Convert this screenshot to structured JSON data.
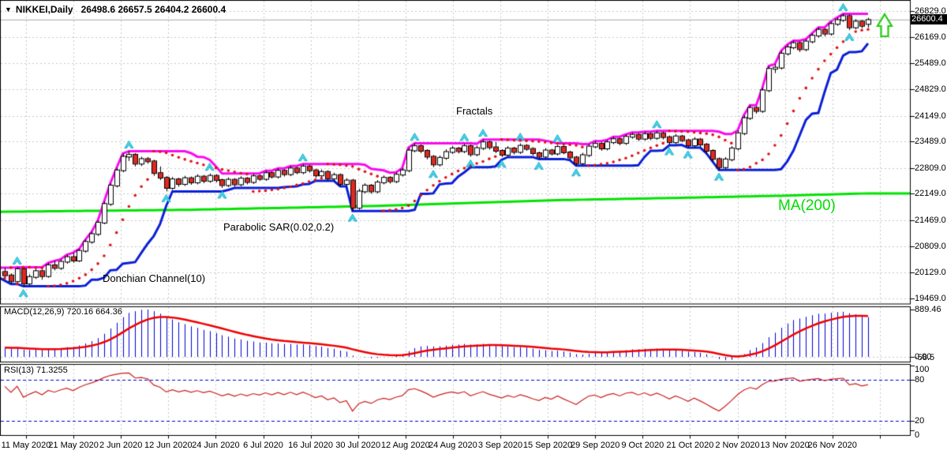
{
  "window": {
    "dropdown_icon": "▼",
    "symbol_title": "NIKKEI,Daily",
    "title_ohlc": "26498.6 26657.5 26404.2 26600.4"
  },
  "main_chart": {
    "labels": {
      "fractals": "Fractals",
      "parabolic_sar": "Parabolic SAR(0.02,0.2)",
      "donchian": "Donchian Channel(10)",
      "ma200": "MA(200)"
    },
    "current_price": "26600.4",
    "price_ticks": [
      26829.0,
      26169.0,
      25489.0,
      24829.0,
      24149.0,
      23489.0,
      22809.0,
      22149.0,
      21469.0,
      20809.0,
      20129.0,
      19469.0
    ],
    "up_arrow_icon": "buy-signal-arrow"
  },
  "macd_panel": {
    "label": "MACD(12,26,9) 720.16 664.36",
    "tick_max": "889.46",
    "tick_zero": "0.00",
    "tick_min": "-58.5"
  },
  "rsi_panel": {
    "label": "RSI(13) 71.3255",
    "ticks": [
      100,
      80,
      20,
      0
    ],
    "level_lines": [
      80,
      20
    ]
  },
  "date_axis": {
    "labels": [
      "11 May 2020",
      "21 May 2020",
      "2 Jun 2020",
      "12 Jun 2020",
      "24 Jun 2020",
      "6 Jul 2020",
      "16 Jul 2020",
      "30 Jul 2020",
      "12 Aug 2020",
      "24 Aug 2020",
      "3 Sep 2020",
      "15 Sep 2020",
      "29 Sep 2020",
      "9 Oct 2020",
      "21 Oct 2020",
      "2 Nov 2020",
      "13 Nov 2020",
      "26 Nov 2020"
    ]
  },
  "colors": {
    "grid": "#c8c8c8",
    "panel_border": "#000000",
    "candle_up_fill": "#ffffff",
    "candle_down_fill": "#e02820",
    "candle_outline": "#000000",
    "donchian_upper": "#fb0af0",
    "donchian_lower": "#0b1fd8",
    "ma200": "#00e400",
    "sar_dots": "#e01414",
    "fractal_fill": "#49d8ea",
    "fractal_edge": "#0fa6c6",
    "macd_hist": "#0000d8",
    "macd_signal": "#f00000",
    "rsi_line": "#cc2020",
    "rsi_levels": "#0000cc",
    "price_line": "#a8a8a8",
    "buy_arrow": "#22cc11"
  },
  "chart_data": {
    "type": "candlestick",
    "symbol": "NIKKEI",
    "timeframe": "Daily",
    "title": "NIKKEI,Daily 26498.6 26657.5 26404.2 26600.4",
    "x_labels": [
      "11 May 2020",
      "21 May 2020",
      "2 Jun 2020",
      "12 Jun 2020",
      "24 Jun 2020",
      "6 Jul 2020",
      "16 Jul 2020",
      "30 Jul 2020",
      "12 Aug 2020",
      "24 Aug 2020",
      "3 Sep 2020",
      "15 Sep 2020",
      "29 Sep 2020",
      "9 Oct 2020",
      "21 Oct 2020",
      "2 Nov 2020",
      "13 Nov 2020",
      "26 Nov 2020"
    ],
    "y_axis_ticks": [
      26829.0,
      26169.0,
      25489.0,
      24829.0,
      24149.0,
      23489.0,
      22809.0,
      22149.0,
      21469.0,
      20809.0,
      20129.0,
      19469.0
    ],
    "last_price": 26600.4,
    "indicators": {
      "parabolic_sar_params": [
        0.02,
        0.2
      ],
      "donchian_period": 10,
      "ma_period": 200,
      "macd_params": [
        12,
        26,
        9
      ],
      "macd_values": [
        720.16,
        664.36
      ],
      "macd_scale_max": 889.46,
      "rsi_period": 13,
      "rsi_value": 71.3255,
      "rsi_levels": [
        80,
        20
      ]
    },
    "ma200_anchors": [
      [
        0,
        21690
      ],
      [
        30,
        21740
      ],
      [
        60,
        21840
      ],
      [
        90,
        21990
      ],
      [
        110,
        22050
      ],
      [
        125,
        22100
      ],
      [
        139,
        22160
      ]
    ],
    "candles": [
      [
        20150,
        20260,
        19990,
        20060
      ],
      [
        20060,
        20110,
        19840,
        19910
      ],
      [
        19910,
        20270,
        19860,
        20220
      ],
      [
        20220,
        20250,
        19780,
        19850
      ],
      [
        19850,
        20090,
        19800,
        20020
      ],
      [
        20020,
        20240,
        19970,
        20170
      ],
      [
        20170,
        20210,
        19950,
        20040
      ],
      [
        20040,
        20380,
        20000,
        20320
      ],
      [
        20320,
        20430,
        20190,
        20250
      ],
      [
        20250,
        20470,
        20200,
        20410
      ],
      [
        20410,
        20590,
        20360,
        20530
      ],
      [
        20530,
        20640,
        20380,
        20440
      ],
      [
        20440,
        20740,
        20400,
        20690
      ],
      [
        20690,
        20980,
        20640,
        20920
      ],
      [
        20920,
        21180,
        20870,
        21120
      ],
      [
        21120,
        21470,
        21070,
        21410
      ],
      [
        21410,
        21950,
        21370,
        21890
      ],
      [
        21890,
        22420,
        21840,
        22360
      ],
      [
        22360,
        22810,
        22310,
        22750
      ],
      [
        22750,
        23180,
        22700,
        23100
      ],
      [
        23100,
        23240,
        22990,
        23150
      ],
      [
        23150,
        23190,
        22850,
        22920
      ],
      [
        22920,
        23100,
        22860,
        23040
      ],
      [
        23040,
        23090,
        22920,
        22980
      ],
      [
        22980,
        23020,
        22610,
        22680
      ],
      [
        22680,
        22850,
        22500,
        22560
      ],
      [
        22560,
        22600,
        22210,
        22300
      ],
      [
        22300,
        22580,
        22250,
        22520
      ],
      [
        22520,
        22560,
        22330,
        22400
      ],
      [
        22400,
        22610,
        22350,
        22550
      ],
      [
        22550,
        22590,
        22380,
        22440
      ],
      [
        22440,
        22650,
        22390,
        22590
      ],
      [
        22590,
        22630,
        22420,
        22480
      ],
      [
        22480,
        22670,
        22430,
        22610
      ],
      [
        22610,
        22650,
        22440,
        22500
      ],
      [
        22500,
        22540,
        22300,
        22370
      ],
      [
        22370,
        22570,
        22320,
        22510
      ],
      [
        22510,
        22550,
        22330,
        22390
      ],
      [
        22390,
        22600,
        22340,
        22540
      ],
      [
        22540,
        22580,
        22390,
        22450
      ],
      [
        22450,
        22660,
        22400,
        22600
      ],
      [
        22600,
        22640,
        22480,
        22530
      ],
      [
        22530,
        22740,
        22480,
        22680
      ],
      [
        22680,
        22720,
        22540,
        22590
      ],
      [
        22590,
        22800,
        22540,
        22740
      ],
      [
        22740,
        22780,
        22590,
        22650
      ],
      [
        22650,
        22860,
        22600,
        22800
      ],
      [
        22800,
        22840,
        22650,
        22700
      ],
      [
        22700,
        22910,
        22650,
        22850
      ],
      [
        22850,
        22890,
        22690,
        22750
      ],
      [
        22750,
        22790,
        22550,
        22620
      ],
      [
        22620,
        22770,
        22560,
        22710
      ],
      [
        22710,
        22750,
        22480,
        22540
      ],
      [
        22540,
        22690,
        22480,
        22630
      ],
      [
        22630,
        22670,
        22340,
        22400
      ],
      [
        22400,
        22550,
        22340,
        22490
      ],
      [
        22490,
        22530,
        21710,
        21790
      ],
      [
        21790,
        22280,
        21740,
        22210
      ],
      [
        22210,
        22420,
        22160,
        22360
      ],
      [
        22360,
        22400,
        22150,
        22210
      ],
      [
        22210,
        22500,
        22160,
        22440
      ],
      [
        22440,
        22620,
        22390,
        22560
      ],
      [
        22560,
        22600,
        22410,
        22470
      ],
      [
        22470,
        22700,
        22420,
        22640
      ],
      [
        22640,
        22810,
        22590,
        22750
      ],
      [
        22750,
        23330,
        22700,
        23260
      ],
      [
        23260,
        23440,
        23210,
        23370
      ],
      [
        23370,
        23410,
        23190,
        23250
      ],
      [
        23250,
        23290,
        23030,
        23100
      ],
      [
        23100,
        23140,
        22830,
        22900
      ],
      [
        22900,
        23130,
        22850,
        23070
      ],
      [
        23070,
        23290,
        23020,
        23220
      ],
      [
        23220,
        23380,
        23170,
        23310
      ],
      [
        23310,
        23350,
        23180,
        23240
      ],
      [
        23240,
        23430,
        23190,
        23370
      ],
      [
        23370,
        23410,
        23100,
        23160
      ],
      [
        23160,
        23380,
        23110,
        23320
      ],
      [
        23320,
        23540,
        23270,
        23470
      ],
      [
        23470,
        23510,
        23280,
        23340
      ],
      [
        23340,
        23480,
        23190,
        23250
      ],
      [
        23250,
        23290,
        23090,
        23150
      ],
      [
        23150,
        23370,
        23100,
        23310
      ],
      [
        23310,
        23350,
        23160,
        23220
      ],
      [
        23220,
        23440,
        23170,
        23380
      ],
      [
        23380,
        23420,
        23250,
        23300
      ],
      [
        23300,
        23340,
        23130,
        23190
      ],
      [
        23190,
        23230,
        23040,
        23100
      ],
      [
        23100,
        23320,
        23050,
        23260
      ],
      [
        23260,
        23300,
        23130,
        23180
      ],
      [
        23180,
        23400,
        23130,
        23350
      ],
      [
        23350,
        23390,
        23160,
        23210
      ],
      [
        23210,
        23250,
        23010,
        23080
      ],
      [
        23080,
        23120,
        22870,
        22930
      ],
      [
        22930,
        23200,
        22880,
        23140
      ],
      [
        23140,
        23420,
        23090,
        23360
      ],
      [
        23360,
        23500,
        23310,
        23430
      ],
      [
        23430,
        23470,
        23250,
        23310
      ],
      [
        23310,
        23530,
        23260,
        23470
      ],
      [
        23470,
        23610,
        23420,
        23550
      ],
      [
        23550,
        23590,
        23390,
        23450
      ],
      [
        23450,
        23670,
        23400,
        23610
      ],
      [
        23610,
        23720,
        23560,
        23660
      ],
      [
        23660,
        23700,
        23500,
        23560
      ],
      [
        23560,
        23740,
        23510,
        23680
      ],
      [
        23680,
        23720,
        23520,
        23580
      ],
      [
        23580,
        23760,
        23530,
        23700
      ],
      [
        23700,
        23740,
        23540,
        23600
      ],
      [
        23600,
        23640,
        23410,
        23470
      ],
      [
        23470,
        23680,
        23420,
        23620
      ],
      [
        23620,
        23660,
        23470,
        23520
      ],
      [
        23520,
        23560,
        23330,
        23390
      ],
      [
        23390,
        23600,
        23340,
        23540
      ],
      [
        23540,
        23580,
        23350,
        23410
      ],
      [
        23410,
        23450,
        23180,
        23250
      ],
      [
        23250,
        23290,
        22970,
        23040
      ],
      [
        23040,
        23080,
        22760,
        22830
      ],
      [
        22830,
        23090,
        22780,
        23030
      ],
      [
        23030,
        23370,
        22980,
        23310
      ],
      [
        23310,
        23770,
        23260,
        23700
      ],
      [
        23700,
        24160,
        23650,
        24090
      ],
      [
        24090,
        24420,
        24040,
        24350
      ],
      [
        24350,
        24390,
        24200,
        24270
      ],
      [
        24270,
        24870,
        24220,
        24800
      ],
      [
        24800,
        25420,
        24750,
        25350
      ],
      [
        25350,
        25470,
        25240,
        25380
      ],
      [
        25380,
        25810,
        25330,
        25740
      ],
      [
        25740,
        25970,
        25690,
        25900
      ],
      [
        25900,
        26070,
        25850,
        26010
      ],
      [
        26010,
        26050,
        25780,
        25850
      ],
      [
        25850,
        26110,
        25800,
        26050
      ],
      [
        26050,
        26260,
        26000,
        26200
      ],
      [
        26200,
        26410,
        26150,
        26350
      ],
      [
        26350,
        26390,
        26180,
        26250
      ],
      [
        26250,
        26560,
        26200,
        26500
      ],
      [
        26500,
        26660,
        26450,
        26600
      ],
      [
        26600,
        26760,
        26550,
        26700
      ],
      [
        26700,
        26740,
        26340,
        26410
      ],
      [
        26410,
        26620,
        26360,
        26560
      ],
      [
        26560,
        26600,
        26390,
        26450
      ],
      [
        26498.6,
        26657.5,
        26404.2,
        26600.4
      ]
    ]
  }
}
